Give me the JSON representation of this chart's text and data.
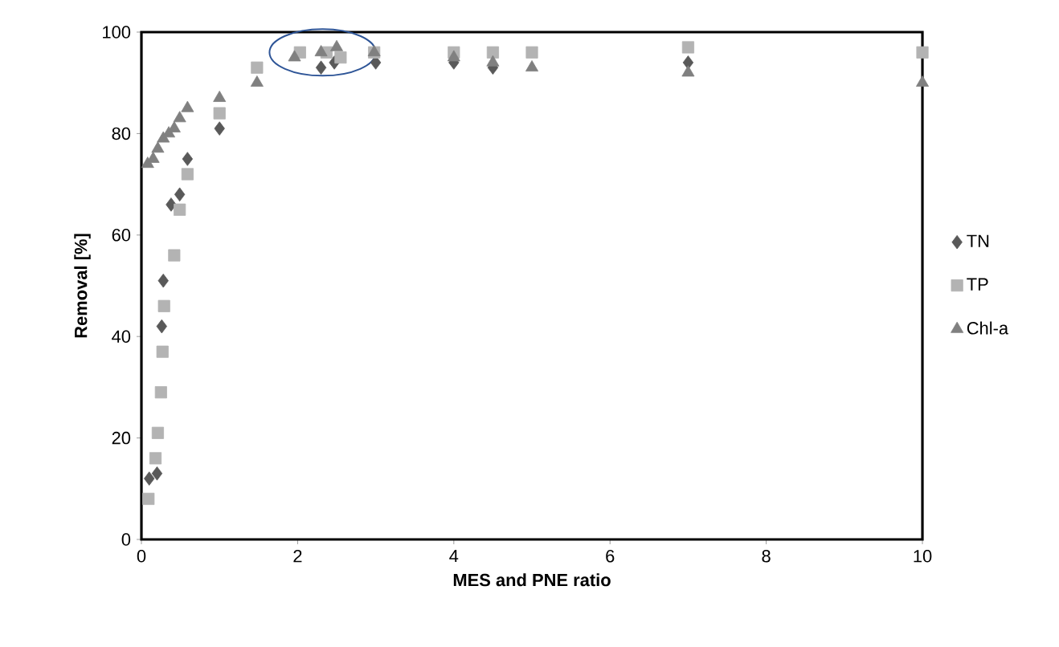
{
  "chart_data": {
    "type": "scatter",
    "xlabel": "MES and PNE ratio",
    "ylabel": "Removal [%]",
    "xlim": [
      0,
      10
    ],
    "ylim": [
      0,
      100
    ],
    "xticks": [
      0,
      2,
      4,
      6,
      8,
      10
    ],
    "yticks": [
      0,
      20,
      40,
      60,
      80,
      100
    ],
    "grid": false,
    "legend": "right",
    "series": [
      {
        "name": "TN",
        "color": "#595959",
        "marker": "diamond",
        "x": [
          0.1,
          0.2,
          0.26,
          0.28,
          0.38,
          0.49,
          0.59,
          1.0,
          2.3,
          2.47,
          3.0,
          4.0,
          4.5,
          7.0
        ],
        "values": [
          12,
          13,
          42,
          51,
          66,
          68,
          75,
          81,
          93,
          94,
          94,
          94,
          93,
          94
        ]
      },
      {
        "name": "TP",
        "color": "#b3b3b3",
        "marker": "square",
        "x": [
          0.09,
          0.18,
          0.21,
          0.25,
          0.27,
          0.29,
          0.42,
          0.49,
          0.59,
          1.0,
          1.48,
          2.03,
          2.37,
          2.55,
          2.98,
          4.0,
          4.5,
          5.0,
          7.0,
          10.0
        ],
        "values": [
          8,
          16,
          21,
          29,
          37,
          46,
          56,
          65,
          72,
          84,
          93,
          96,
          96,
          95,
          96,
          96,
          96,
          96,
          97,
          96
        ]
      },
      {
        "name": "Chl-a",
        "color": "#808080",
        "marker": "triangle",
        "x": [
          0.08,
          0.15,
          0.21,
          0.28,
          0.35,
          0.42,
          0.49,
          0.59,
          1.0,
          1.48,
          1.96,
          2.3,
          2.5,
          2.98,
          4.0,
          4.5,
          5.0,
          7.0,
          10.0
        ],
        "values": [
          74,
          75,
          77,
          79,
          80,
          81,
          83,
          85,
          87,
          90,
          95,
          96,
          97,
          96,
          95,
          94,
          93,
          92,
          90
        ]
      }
    ]
  }
}
